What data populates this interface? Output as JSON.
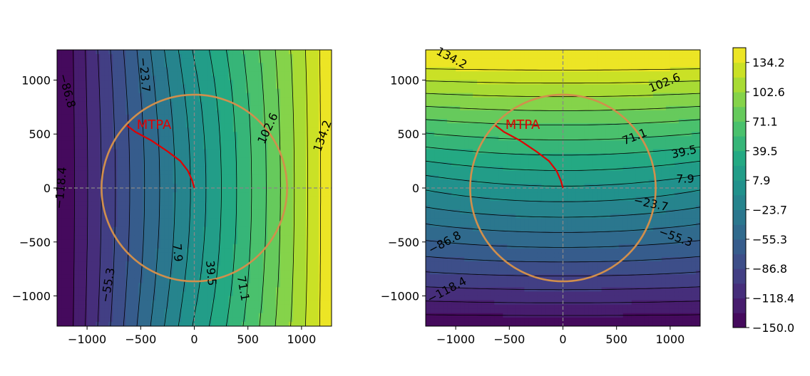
{
  "chart_data": [
    {
      "type": "heatmap",
      "subtype": "filled-contour",
      "title": "",
      "xlabel": "",
      "ylabel": "",
      "xlim": [
        -1280,
        1280
      ],
      "ylim": [
        -1280,
        1280
      ],
      "x_ticks": [
        -1000,
        -500,
        0,
        500,
        1000
      ],
      "x_tick_labels": [
        "−1000",
        "−500",
        "0",
        "500",
        "1000"
      ],
      "y_ticks": [
        1000,
        500,
        0,
        -500,
        -1000
      ],
      "y_tick_labels": [
        "1000",
        "500",
        "0",
        "−500",
        "−1000"
      ],
      "field": "x-dependent",
      "field_range": [
        -150,
        150
      ],
      "contour_labels": [
        {
          "text": "−86.8",
          "x": -1190,
          "y": 900,
          "angle": 75
        },
        {
          "text": "−23.7",
          "x": -470,
          "y": 1050,
          "angle": 85
        },
        {
          "text": "102.6",
          "x": 690,
          "y": 550,
          "angle": -65
        },
        {
          "text": "134.2",
          "x": 1200,
          "y": 480,
          "angle": -70
        },
        {
          "text": "−118.4",
          "x": -1240,
          "y": 0,
          "angle": -85
        },
        {
          "text": "−55.3",
          "x": -800,
          "y": -900,
          "angle": -80
        },
        {
          "text": "7.9",
          "x": -160,
          "y": -600,
          "angle": 85
        },
        {
          "text": "39.5",
          "x": 150,
          "y": -790,
          "angle": 85
        },
        {
          "text": "71.1",
          "x": 450,
          "y": -930,
          "angle": 80
        }
      ],
      "guide_lines": {
        "horizontal": 0,
        "vertical": 0
      },
      "circle": {
        "center": [
          0,
          0
        ],
        "radius": 865,
        "color": "#d18f4c"
      },
      "mtpa_curve": {
        "label": "MTPA",
        "color": "#e00000",
        "points": [
          [
            0,
            0
          ],
          [
            -20,
            70
          ],
          [
            -60,
            160
          ],
          [
            -130,
            250
          ],
          [
            -250,
            340
          ],
          [
            -400,
            440
          ],
          [
            -550,
            520
          ],
          [
            -630,
            580
          ]
        ]
      }
    },
    {
      "type": "heatmap",
      "subtype": "filled-contour",
      "title": "",
      "xlabel": "",
      "ylabel": "",
      "xlim": [
        -1280,
        1280
      ],
      "ylim": [
        -1280,
        1280
      ],
      "x_ticks": [
        -1000,
        -500,
        0,
        500,
        1000
      ],
      "x_tick_labels": [
        "−1000",
        "−500",
        "0",
        "500",
        "1000"
      ],
      "y_ticks": [
        1000,
        500,
        0,
        -500,
        -1000
      ],
      "y_tick_labels": [
        "1000",
        "500",
        "0",
        "−500",
        "−1000"
      ],
      "field": "y-dependent",
      "field_range": [
        -150,
        150
      ],
      "contour_labels": [
        {
          "text": "134.2",
          "x": -1040,
          "y": 1200,
          "angle": 28
        },
        {
          "text": "102.6",
          "x": 950,
          "y": 970,
          "angle": -22
        },
        {
          "text": "71.1",
          "x": 670,
          "y": 470,
          "angle": -22
        },
        {
          "text": "39.5",
          "x": 1130,
          "y": 330,
          "angle": -12
        },
        {
          "text": "7.9",
          "x": 1140,
          "y": 80,
          "angle": 0
        },
        {
          "text": "−23.7",
          "x": 820,
          "y": -150,
          "angle": 12
        },
        {
          "text": "−55.3",
          "x": 1050,
          "y": -460,
          "angle": 20
        },
        {
          "text": "−86.8",
          "x": -1100,
          "y": -510,
          "angle": -28
        },
        {
          "text": "−118.4",
          "x": -1080,
          "y": -950,
          "angle": -28
        }
      ],
      "guide_lines": {
        "horizontal": 0,
        "vertical": 0
      },
      "circle": {
        "center": [
          0,
          0
        ],
        "radius": 865,
        "color": "#d18f4c"
      },
      "mtpa_curve": {
        "label": "MTPA",
        "color": "#e00000",
        "points": [
          [
            0,
            0
          ],
          [
            -20,
            70
          ],
          [
            -60,
            160
          ],
          [
            -130,
            250
          ],
          [
            -250,
            340
          ],
          [
            -400,
            440
          ],
          [
            -550,
            520
          ],
          [
            -630,
            580
          ]
        ]
      }
    },
    {
      "type": "colorbar",
      "range": [
        -150,
        150
      ],
      "levels": [
        -150.0,
        -134.2,
        -118.4,
        -102.6,
        -86.8,
        -71.1,
        -55.3,
        -39.5,
        -23.7,
        -7.9,
        7.9,
        23.7,
        39.5,
        55.3,
        71.1,
        86.8,
        102.6,
        118.4,
        134.2,
        150.0
      ],
      "tick_values": [
        134.2,
        102.6,
        71.1,
        39.5,
        7.9,
        -23.7,
        -55.3,
        -86.8,
        -118.4,
        -150.0
      ],
      "tick_labels": [
        "134.2",
        "102.6",
        "71.1",
        "39.5",
        "7.9",
        "−23.7",
        "−55.3",
        "−86.8",
        "−118.4",
        "−150.0"
      ]
    }
  ]
}
